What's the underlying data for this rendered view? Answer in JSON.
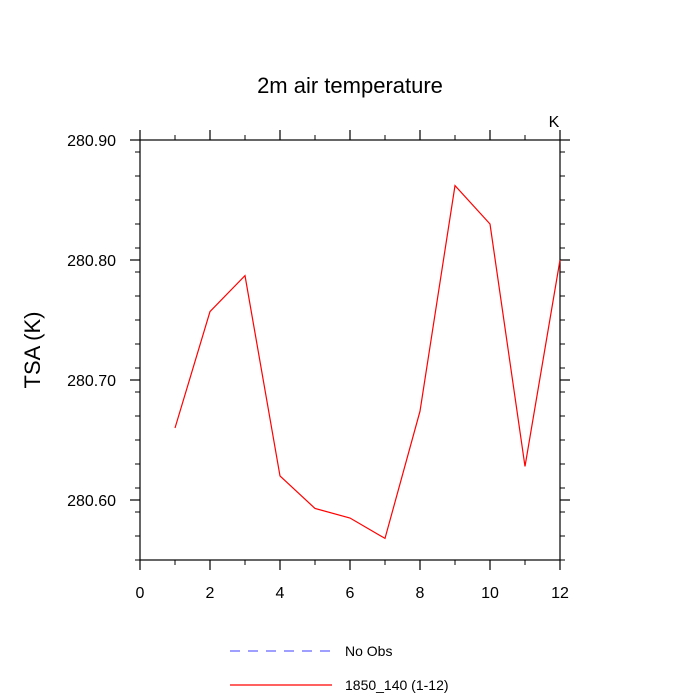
{
  "chart_data": {
    "type": "line",
    "title": "2m air temperature",
    "units_label": "K",
    "ylabel": "TSA  (K)",
    "xlabel": "",
    "xlim": [
      0,
      12
    ],
    "ylim": [
      280.55,
      280.9
    ],
    "x_ticks": [
      "0",
      "2",
      "4",
      "6",
      "8",
      "10",
      "12"
    ],
    "y_ticks": [
      "280.60",
      "280.70",
      "280.80",
      "280.90"
    ],
    "grid": false,
    "legend_position": "bottom",
    "series": [
      {
        "name": "No Obs",
        "color": "#6666ff",
        "dash": true,
        "x": [],
        "values": []
      },
      {
        "name": "1850_140 (1-12)",
        "color": "#ff0000",
        "dash": false,
        "x": [
          1,
          2,
          3,
          4,
          5,
          6,
          7,
          8,
          9,
          10,
          11,
          12
        ],
        "values": [
          280.66,
          280.757,
          280.787,
          280.62,
          280.593,
          280.585,
          280.568,
          280.674,
          280.862,
          280.83,
          280.628,
          280.8
        ]
      }
    ]
  }
}
